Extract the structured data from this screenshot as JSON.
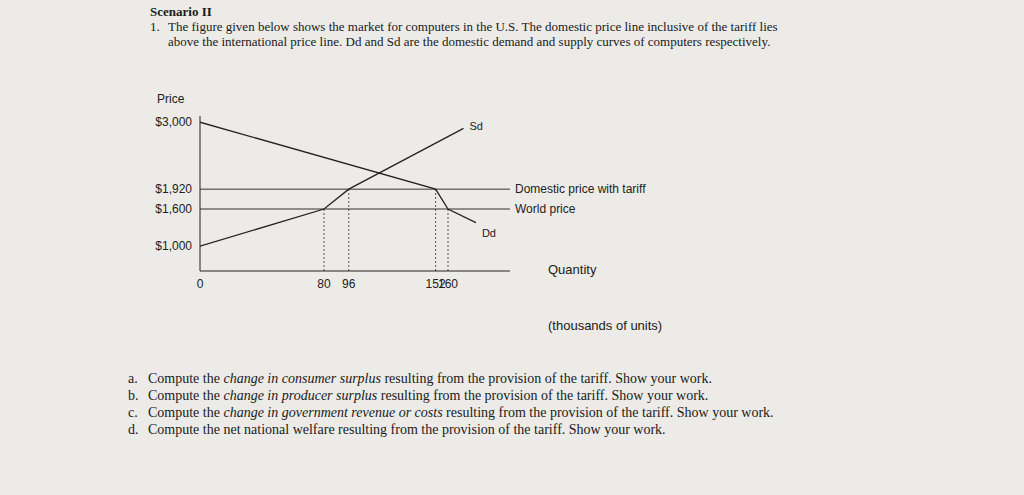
{
  "header": {
    "title": "Scenario II"
  },
  "problem": {
    "number": "1.",
    "text": "The figure given below shows the market for computers in the U.S. The domestic price line inclusive of the tariff lies above the international price line. Dd and Sd are the domestic demand and supply curves of computers respectively."
  },
  "chart_data": {
    "type": "line",
    "y_label": "Price",
    "x_label": "Quantity",
    "x_unit": "(thousands of units)",
    "series": [
      {
        "name": "Sd",
        "color": "#222222",
        "x": [
          0,
          80,
          96,
          170
        ],
        "values": [
          1000,
          1600,
          1920,
          2900
        ]
      },
      {
        "name": "Dd",
        "color": "#222222",
        "x": [
          0,
          152,
          160,
          178
        ],
        "values": [
          3000,
          1920,
          1600,
          1380
        ]
      }
    ],
    "price_lines": [
      {
        "name": "Domestic price with tariff",
        "value": 1920
      },
      {
        "name": "World price",
        "value": 1600
      }
    ],
    "drop_lines": [
      {
        "x": 80,
        "y": 1600
      },
      {
        "x": 96,
        "y": 1920
      },
      {
        "x": 152,
        "y": 1920
      },
      {
        "x": 160,
        "y": 1600
      }
    ],
    "xlim": [
      0,
      200
    ],
    "xticks": [
      0,
      80,
      96,
      152,
      160
    ],
    "ylim": [
      600,
      3100
    ],
    "yticks": [
      {
        "value": 1000,
        "label": "$1,000"
      },
      {
        "value": 1600,
        "label": "$1,600"
      },
      {
        "value": 1920,
        "label": "$1,920"
      },
      {
        "value": 3000,
        "label": "$3,000"
      }
    ],
    "grid": false
  },
  "questions": [
    {
      "letter": "a.",
      "before": "Compute the ",
      "emphasis": "change in consumer surplus",
      "after": " resulting from the provision of the tariff. Show your work."
    },
    {
      "letter": "b.",
      "before": "Compute the ",
      "emphasis": "change in producer surplus",
      "after": " resulting from the provision of the tariff. Show your work."
    },
    {
      "letter": "c.",
      "before": "Compute the ",
      "emphasis": "change in government revenue or costs",
      "after": " resulting from the provision of the tariff. Show your work."
    },
    {
      "letter": "d.",
      "before": "Compute the net national welfare resulting from the provision of the tariff. Show your work.",
      "emphasis": "",
      "after": ""
    }
  ]
}
